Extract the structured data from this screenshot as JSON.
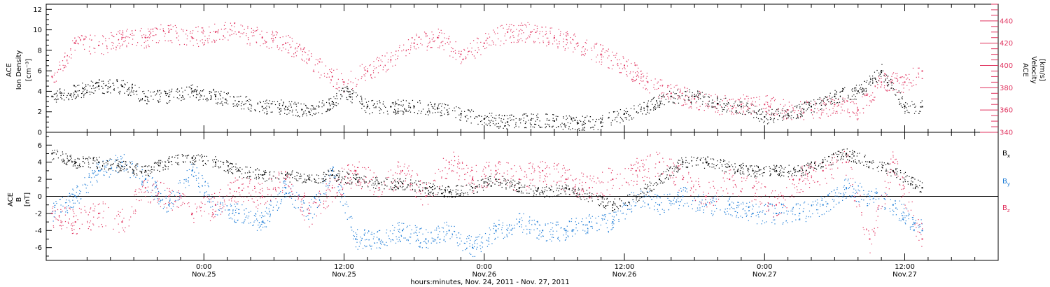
{
  "chart_data": {
    "type": "scatter",
    "xlabel": "hours:minutes, Nov. 24, 2011 - Nov. 27, 2011",
    "x_ticks": [
      {
        "hours": 12,
        "label": "0:00",
        "sublabel": "Nov.25"
      },
      {
        "hours": 24,
        "label": "12:00",
        "sublabel": "Nov.25"
      },
      {
        "hours": 36,
        "label": "0:00",
        "sublabel": "Nov.26"
      },
      {
        "hours": 48,
        "label": "12:00",
        "sublabel": "Nov.26"
      },
      {
        "hours": 60,
        "label": "0:00",
        "sublabel": "Nov.27"
      },
      {
        "hours": 72,
        "label": "12:00",
        "sublabel": "Nov.27"
      }
    ],
    "xlim_hours": [
      -1.5,
      80
    ],
    "panels": [
      {
        "ylabel_lines": [
          "ACE",
          "Ion Density",
          "[cm⁻³]"
        ],
        "ylim": [
          0,
          12.5
        ],
        "yticks": [
          0,
          2,
          4,
          6,
          8,
          10,
          12
        ],
        "right_axis": {
          "ylabel_lines": [
            "ACE",
            "Velocity",
            "[km/s]"
          ],
          "ylim": [
            340,
            455
          ],
          "yticks": [
            340,
            360,
            380,
            400,
            420,
            440
          ],
          "color": "#e0335f"
        },
        "series": [
          {
            "axis": "left",
            "color": "#000000",
            "x_hours": [
              -1,
              1,
              3,
              5,
              7,
              9,
              11,
              13,
              15,
              17,
              19,
              21,
              23,
              24,
              26,
              28,
              30,
              32,
              34,
              36,
              38,
              40,
              42,
              44,
              46,
              48,
              50,
              52,
              54,
              56,
              58,
              60,
              62,
              64,
              66,
              68,
              70,
              72,
              73.5
            ],
            "y": [
              3.5,
              4,
              4.5,
              4.5,
              3.5,
              3.5,
              4,
              3.5,
              3,
              2.5,
              2.5,
              2,
              3,
              4,
              2.5,
              2.5,
              2.5,
              2.3,
              1.8,
              1.3,
              1,
              1.2,
              1.1,
              0.9,
              1,
              1.8,
              2.5,
              3.5,
              3.5,
              2.8,
              2.5,
              1.5,
              1.8,
              2.5,
              3.5,
              4,
              6,
              2.5,
              2.5
            ]
          },
          {
            "axis": "right",
            "color": "#e0335f",
            "x_hours": [
              -1,
              1,
              3,
              5,
              7,
              9,
              11,
              13,
              15,
              17,
              19,
              21,
              23,
              24,
              26,
              28,
              30,
              32,
              34,
              36,
              38,
              40,
              42,
              44,
              46,
              48,
              50,
              52,
              54,
              56,
              58,
              60,
              62,
              64,
              66,
              68,
              70,
              72,
              73.5
            ],
            "y": [
              390,
              420,
              418,
              425,
              425,
              430,
              425,
              430,
              430,
              425,
              420,
              405,
              390,
              385,
              395,
              405,
              420,
              425,
              410,
              420,
              430,
              430,
              425,
              420,
              410,
              400,
              385,
              375,
              370,
              365,
              365,
              365,
              360,
              360,
              365,
              360,
              385,
              385,
              395
            ]
          }
        ]
      },
      {
        "ylabel_lines": [
          "ACE",
          "B",
          "[nT]"
        ],
        "ylim": [
          -7.5,
          7.5
        ],
        "yticks": [
          -6,
          -4,
          -2,
          0,
          2,
          4,
          6
        ],
        "legend": [
          {
            "label": "B",
            "sub": "x",
            "color": "#000000"
          },
          {
            "label": "B",
            "sub": "y",
            "color": "#1a7ad6"
          },
          {
            "label": "B",
            "sub": "z",
            "color": "#e0335f"
          }
        ],
        "series": [
          {
            "name": "Bx",
            "color": "#000000",
            "x_hours": [
              -1,
              1,
              3,
              5,
              7,
              9,
              11,
              13,
              15,
              17,
              19,
              21,
              23,
              25,
              27,
              29,
              31,
              33,
              35,
              37,
              39,
              41,
              43,
              45,
              47,
              49,
              51,
              53,
              55,
              57,
              59,
              61,
              63,
              65,
              67,
              69,
              71,
              73.5
            ],
            "y": [
              5,
              4,
              4,
              3.5,
              3,
              4,
              4.5,
              4,
              3,
              2.5,
              2.5,
              2,
              2.5,
              2,
              1.5,
              1.5,
              1,
              0.5,
              1,
              2,
              1,
              0.5,
              1,
              0,
              -1,
              0,
              2,
              4,
              4,
              3.5,
              3,
              3,
              3,
              4,
              5,
              4,
              3,
              1
            ]
          },
          {
            "name": "By",
            "color": "#1a7ad6",
            "x_hours": [
              -1,
              1,
              3,
              5,
              7,
              9,
              11,
              13,
              15,
              17,
              19,
              21,
              23,
              25,
              27,
              29,
              31,
              33,
              35,
              37,
              39,
              41,
              43,
              45,
              47,
              49,
              51,
              53,
              55,
              57,
              59,
              61,
              63,
              65,
              67,
              69,
              71,
              73.5
            ],
            "y": [
              -2,
              0,
              3,
              4,
              2,
              -1,
              3,
              -1,
              -2,
              -3,
              1,
              -2,
              3,
              -5,
              -5,
              -4,
              -5,
              -4,
              -6,
              -4,
              -3,
              -4,
              -4,
              -3,
              -3,
              0,
              -1,
              0,
              -1,
              -1,
              -2,
              -2,
              -2,
              -1,
              1,
              0,
              -1,
              -4
            ]
          },
          {
            "name": "Bz",
            "color": "#e0335f",
            "x_hours": [
              -1,
              1,
              3,
              5,
              7,
              9,
              11,
              13,
              15,
              17,
              19,
              21,
              23,
              25,
              27,
              29,
              31,
              33,
              35,
              37,
              39,
              41,
              43,
              45,
              47,
              49,
              51,
              53,
              55,
              57,
              59,
              61,
              63,
              65,
              67,
              69,
              71,
              73.5
            ],
            "y": [
              -2,
              -3,
              -2,
              -3,
              1,
              0,
              -2,
              -1,
              1,
              0,
              2,
              -2,
              1,
              3,
              1,
              3,
              0,
              4,
              2,
              3,
              2,
              3,
              2,
              1,
              2,
              3,
              4,
              2,
              0,
              2,
              1,
              -1,
              2,
              3,
              4,
              -5,
              4,
              -5
            ]
          }
        ]
      }
    ]
  }
}
